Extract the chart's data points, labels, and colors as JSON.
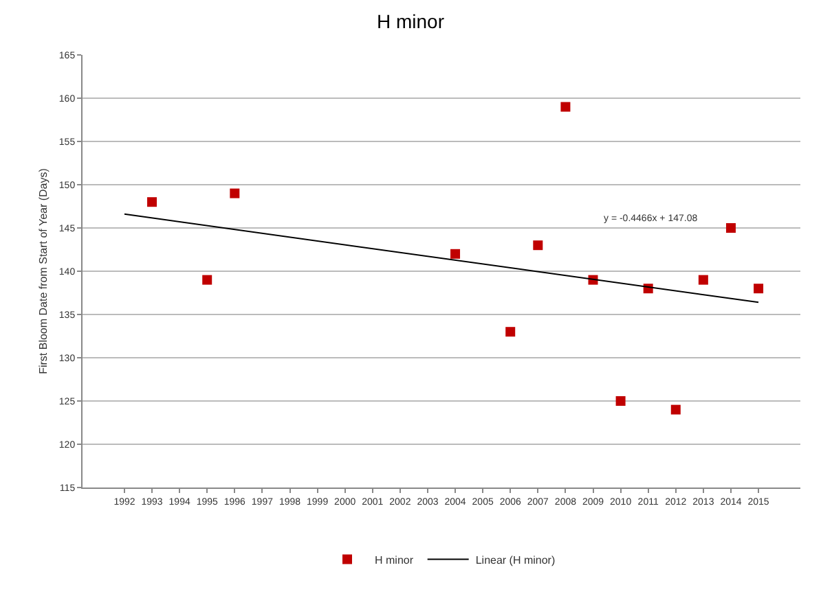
{
  "chart_data": {
    "type": "scatter",
    "title": "H minor",
    "ylabel": "First Bloom Date from Start of Year (Days)",
    "categories": [
      "1992",
      "1993",
      "1994",
      "1995",
      "1996",
      "1997",
      "1998",
      "1999",
      "2000",
      "2001",
      "2002",
      "2003",
      "2004",
      "2005",
      "2006",
      "2007",
      "2008",
      "2009",
      "2010",
      "2011",
      "2012",
      "2013",
      "2014",
      "2015"
    ],
    "series": [
      {
        "name": "H minor",
        "color": "#c00000",
        "marker": "square",
        "values": [
          null,
          148,
          null,
          139,
          149,
          null,
          null,
          null,
          null,
          null,
          null,
          null,
          142,
          null,
          133,
          143,
          159,
          139,
          125,
          138,
          124,
          139,
          145,
          138
        ]
      },
      {
        "name": "Linear (H minor)",
        "type": "line",
        "color": "#000000",
        "marker": "none",
        "values": [
          146.6,
          null,
          null,
          null,
          null,
          null,
          null,
          null,
          null,
          null,
          null,
          null,
          null,
          null,
          null,
          null,
          null,
          null,
          null,
          null,
          null,
          null,
          null,
          136.4
        ]
      }
    ],
    "ylim": [
      115,
      165
    ],
    "yticks": [
      115,
      120,
      125,
      130,
      135,
      140,
      145,
      150,
      155,
      160,
      165
    ],
    "grid": "y",
    "legend": "bottom",
    "annotations": [
      "y = -0.4466x + 147.08"
    ]
  }
}
